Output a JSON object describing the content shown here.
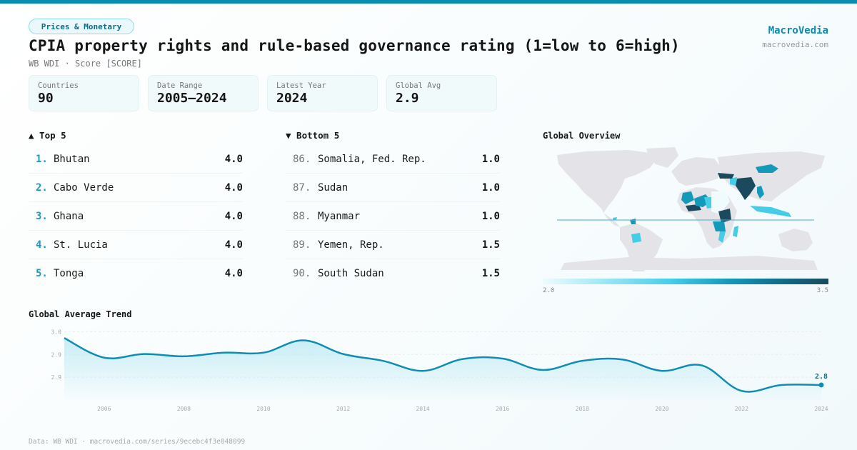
{
  "header": {
    "category": "Prices & Monetary",
    "title": "CPIA property rights and rule-based governance rating (1=low to 6=high)",
    "subtitle": "WB WDI · Score [SCORE]"
  },
  "brand": {
    "name": "MacroVedia",
    "url": "macrovedia.com"
  },
  "stats": [
    {
      "label": "Countries",
      "value": "90"
    },
    {
      "label": "Date Range",
      "value": "2005–2024"
    },
    {
      "label": "Latest Year",
      "value": "2024"
    },
    {
      "label": "Global Avg",
      "value": "2.9"
    }
  ],
  "top5": {
    "heading": "▲ Top 5",
    "items": [
      {
        "rank": "1.",
        "name": "Bhutan",
        "value": "4.0"
      },
      {
        "rank": "2.",
        "name": "Cabo Verde",
        "value": "4.0"
      },
      {
        "rank": "3.",
        "name": "Ghana",
        "value": "4.0"
      },
      {
        "rank": "4.",
        "name": "St. Lucia",
        "value": "4.0"
      },
      {
        "rank": "5.",
        "name": "Tonga",
        "value": "4.0"
      }
    ]
  },
  "bottom5": {
    "heading": "▼ Bottom 5",
    "items": [
      {
        "rank": "86.",
        "name": "Somalia, Fed. Rep.",
        "value": "1.0"
      },
      {
        "rank": "87.",
        "name": "Sudan",
        "value": "1.0"
      },
      {
        "rank": "88.",
        "name": "Myanmar",
        "value": "1.0"
      },
      {
        "rank": "89.",
        "name": "Yemen, Rep.",
        "value": "1.5"
      },
      {
        "rank": "90.",
        "name": "South Sudan",
        "value": "1.5"
      }
    ]
  },
  "map": {
    "title": "Global Overview",
    "legend_min": "2.0",
    "legend_max": "3.5",
    "colors": {
      "no_data": "#e3e3e8",
      "scale": [
        "#effbfd",
        "#a5e8f5",
        "#45cde6",
        "#149ab8",
        "#0f6f8b",
        "#1b4a5e"
      ]
    }
  },
  "chart_data": {
    "type": "area",
    "title": "Global Average Trend",
    "xlabel": "",
    "ylabel": "",
    "x": [
      2005,
      2006,
      2007,
      2008,
      2009,
      2010,
      2011,
      2012,
      2013,
      2014,
      2015,
      2016,
      2017,
      2018,
      2019,
      2020,
      2021,
      2022,
      2023,
      2024
    ],
    "series": [
      {
        "name": "Global average",
        "values": [
          2.946,
          2.903,
          2.911,
          2.906,
          2.914,
          2.914,
          2.941,
          2.911,
          2.896,
          2.874,
          2.9,
          2.901,
          2.876,
          2.896,
          2.899,
          2.874,
          2.886,
          2.83,
          2.843,
          2.843
        ]
      }
    ],
    "x_ticks": [
      2006,
      2008,
      2010,
      2012,
      2014,
      2016,
      2018,
      2020,
      2022,
      2024
    ],
    "y_ticks": [
      {
        "value": 2.96,
        "label": "3.0"
      },
      {
        "value": 2.91,
        "label": "2.9"
      },
      {
        "value": 2.86,
        "label": "2.9"
      }
    ],
    "ylim": [
      2.81,
      2.97
    ],
    "grid": true,
    "last_label": "2.8",
    "colors": {
      "line": "#0f8db2",
      "fill": "#bfeaf4"
    }
  },
  "footer": "Data: WB WDI · macrovedia.com/series/9ecebc4f3e048099"
}
